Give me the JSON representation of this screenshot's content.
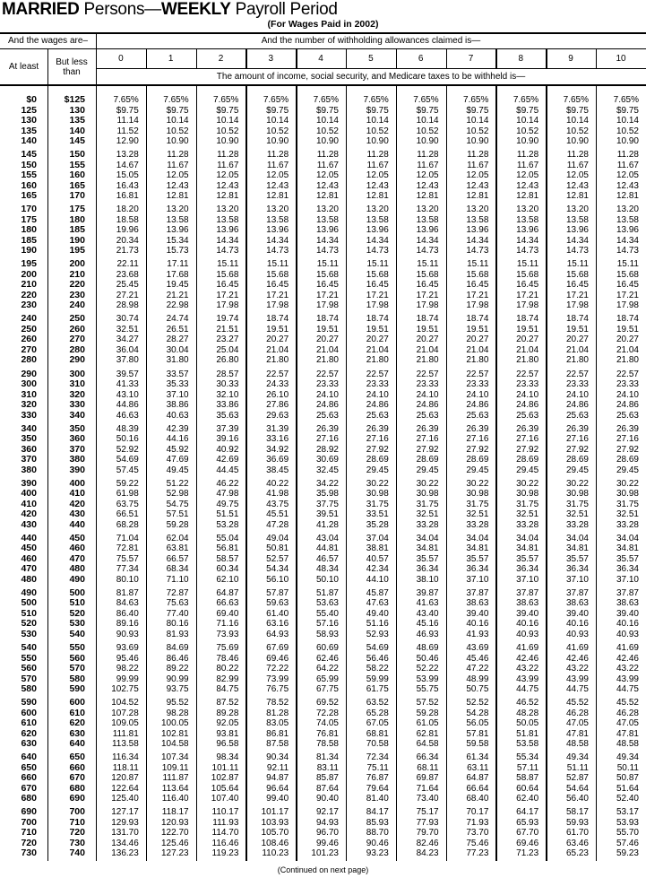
{
  "title": {
    "part1": "MARRIED",
    "part2": " Persons—",
    "part3": "WEEKLY",
    "part4": " Payroll Period"
  },
  "subtitle": "(For Wages Paid in 2002)",
  "header": {
    "wages_label": "And the wages are–",
    "allowances_label": "And the number of withholding allowances claimed is—",
    "at_least": "At least",
    "but_less_than": "But less than",
    "allowance_columns": [
      "0",
      "1",
      "2",
      "3",
      "4",
      "5",
      "6",
      "7",
      "8",
      "9",
      "10"
    ],
    "amount_label": "The amount of income, social security, and Medicare taxes to be withheld is—"
  },
  "groups": [
    [
      [
        "$0",
        "$125",
        "7.65%",
        "7.65%",
        "7.65%",
        "7.65%",
        "7.65%",
        "7.65%",
        "7.65%",
        "7.65%",
        "7.65%",
        "7.65%",
        "7.65%"
      ],
      [
        "125",
        "130",
        "$9.75",
        "$9.75",
        "$9.75",
        "$9.75",
        "$9.75",
        "$9.75",
        "$9.75",
        "$9.75",
        "$9.75",
        "$9.75",
        "$9.75"
      ],
      [
        "130",
        "135",
        "11.14",
        "10.14",
        "10.14",
        "10.14",
        "10.14",
        "10.14",
        "10.14",
        "10.14",
        "10.14",
        "10.14",
        "10.14"
      ],
      [
        "135",
        "140",
        "11.52",
        "10.52",
        "10.52",
        "10.52",
        "10.52",
        "10.52",
        "10.52",
        "10.52",
        "10.52",
        "10.52",
        "10.52"
      ],
      [
        "140",
        "145",
        "12.90",
        "10.90",
        "10.90",
        "10.90",
        "10.90",
        "10.90",
        "10.90",
        "10.90",
        "10.90",
        "10.90",
        "10.90"
      ]
    ],
    [
      [
        "145",
        "150",
        "13.28",
        "11.28",
        "11.28",
        "11.28",
        "11.28",
        "11.28",
        "11.28",
        "11.28",
        "11.28",
        "11.28",
        "11.28"
      ],
      [
        "150",
        "155",
        "14.67",
        "11.67",
        "11.67",
        "11.67",
        "11.67",
        "11.67",
        "11.67",
        "11.67",
        "11.67",
        "11.67",
        "11.67"
      ],
      [
        "155",
        "160",
        "15.05",
        "12.05",
        "12.05",
        "12.05",
        "12.05",
        "12.05",
        "12.05",
        "12.05",
        "12.05",
        "12.05",
        "12.05"
      ],
      [
        "160",
        "165",
        "16.43",
        "12.43",
        "12.43",
        "12.43",
        "12.43",
        "12.43",
        "12.43",
        "12.43",
        "12.43",
        "12.43",
        "12.43"
      ],
      [
        "165",
        "170",
        "16.81",
        "12.81",
        "12.81",
        "12.81",
        "12.81",
        "12.81",
        "12.81",
        "12.81",
        "12.81",
        "12.81",
        "12.81"
      ]
    ],
    [
      [
        "170",
        "175",
        "18.20",
        "13.20",
        "13.20",
        "13.20",
        "13.20",
        "13.20",
        "13.20",
        "13.20",
        "13.20",
        "13.20",
        "13.20"
      ],
      [
        "175",
        "180",
        "18.58",
        "13.58",
        "13.58",
        "13.58",
        "13.58",
        "13.58",
        "13.58",
        "13.58",
        "13.58",
        "13.58",
        "13.58"
      ],
      [
        "180",
        "185",
        "19.96",
        "13.96",
        "13.96",
        "13.96",
        "13.96",
        "13.96",
        "13.96",
        "13.96",
        "13.96",
        "13.96",
        "13.96"
      ],
      [
        "185",
        "190",
        "20.34",
        "15.34",
        "14.34",
        "14.34",
        "14.34",
        "14.34",
        "14.34",
        "14.34",
        "14.34",
        "14.34",
        "14.34"
      ],
      [
        "190",
        "195",
        "21.73",
        "15.73",
        "14.73",
        "14.73",
        "14.73",
        "14.73",
        "14.73",
        "14.73",
        "14.73",
        "14.73",
        "14.73"
      ]
    ],
    [
      [
        "195",
        "200",
        "22.11",
        "17.11",
        "15.11",
        "15.11",
        "15.11",
        "15.11",
        "15.11",
        "15.11",
        "15.11",
        "15.11",
        "15.11"
      ],
      [
        "200",
        "210",
        "23.68",
        "17.68",
        "15.68",
        "15.68",
        "15.68",
        "15.68",
        "15.68",
        "15.68",
        "15.68",
        "15.68",
        "15.68"
      ],
      [
        "210",
        "220",
        "25.45",
        "19.45",
        "16.45",
        "16.45",
        "16.45",
        "16.45",
        "16.45",
        "16.45",
        "16.45",
        "16.45",
        "16.45"
      ],
      [
        "220",
        "230",
        "27.21",
        "21.21",
        "17.21",
        "17.21",
        "17.21",
        "17.21",
        "17.21",
        "17.21",
        "17.21",
        "17.21",
        "17.21"
      ],
      [
        "230",
        "240",
        "28.98",
        "22.98",
        "17.98",
        "17.98",
        "17.98",
        "17.98",
        "17.98",
        "17.98",
        "17.98",
        "17.98",
        "17.98"
      ]
    ],
    [
      [
        "240",
        "250",
        "30.74",
        "24.74",
        "19.74",
        "18.74",
        "18.74",
        "18.74",
        "18.74",
        "18.74",
        "18.74",
        "18.74",
        "18.74"
      ],
      [
        "250",
        "260",
        "32.51",
        "26.51",
        "21.51",
        "19.51",
        "19.51",
        "19.51",
        "19.51",
        "19.51",
        "19.51",
        "19.51",
        "19.51"
      ],
      [
        "260",
        "270",
        "34.27",
        "28.27",
        "23.27",
        "20.27",
        "20.27",
        "20.27",
        "20.27",
        "20.27",
        "20.27",
        "20.27",
        "20.27"
      ],
      [
        "270",
        "280",
        "36.04",
        "30.04",
        "25.04",
        "21.04",
        "21.04",
        "21.04",
        "21.04",
        "21.04",
        "21.04",
        "21.04",
        "21.04"
      ],
      [
        "280",
        "290",
        "37.80",
        "31.80",
        "26.80",
        "21.80",
        "21.80",
        "21.80",
        "21.80",
        "21.80",
        "21.80",
        "21.80",
        "21.80"
      ]
    ],
    [
      [
        "290",
        "300",
        "39.57",
        "33.57",
        "28.57",
        "22.57",
        "22.57",
        "22.57",
        "22.57",
        "22.57",
        "22.57",
        "22.57",
        "22.57"
      ],
      [
        "300",
        "310",
        "41.33",
        "35.33",
        "30.33",
        "24.33",
        "23.33",
        "23.33",
        "23.33",
        "23.33",
        "23.33",
        "23.33",
        "23.33"
      ],
      [
        "310",
        "320",
        "43.10",
        "37.10",
        "32.10",
        "26.10",
        "24.10",
        "24.10",
        "24.10",
        "24.10",
        "24.10",
        "24.10",
        "24.10"
      ],
      [
        "320",
        "330",
        "44.86",
        "38.86",
        "33.86",
        "27.86",
        "24.86",
        "24.86",
        "24.86",
        "24.86",
        "24.86",
        "24.86",
        "24.86"
      ],
      [
        "330",
        "340",
        "46.63",
        "40.63",
        "35.63",
        "29.63",
        "25.63",
        "25.63",
        "25.63",
        "25.63",
        "25.63",
        "25.63",
        "25.63"
      ]
    ],
    [
      [
        "340",
        "350",
        "48.39",
        "42.39",
        "37.39",
        "31.39",
        "26.39",
        "26.39",
        "26.39",
        "26.39",
        "26.39",
        "26.39",
        "26.39"
      ],
      [
        "350",
        "360",
        "50.16",
        "44.16",
        "39.16",
        "33.16",
        "27.16",
        "27.16",
        "27.16",
        "27.16",
        "27.16",
        "27.16",
        "27.16"
      ],
      [
        "360",
        "370",
        "52.92",
        "45.92",
        "40.92",
        "34.92",
        "28.92",
        "27.92",
        "27.92",
        "27.92",
        "27.92",
        "27.92",
        "27.92"
      ],
      [
        "370",
        "380",
        "54.69",
        "47.69",
        "42.69",
        "36.69",
        "30.69",
        "28.69",
        "28.69",
        "28.69",
        "28.69",
        "28.69",
        "28.69"
      ],
      [
        "380",
        "390",
        "57.45",
        "49.45",
        "44.45",
        "38.45",
        "32.45",
        "29.45",
        "29.45",
        "29.45",
        "29.45",
        "29.45",
        "29.45"
      ]
    ],
    [
      [
        "390",
        "400",
        "59.22",
        "51.22",
        "46.22",
        "40.22",
        "34.22",
        "30.22",
        "30.22",
        "30.22",
        "30.22",
        "30.22",
        "30.22"
      ],
      [
        "400",
        "410",
        "61.98",
        "52.98",
        "47.98",
        "41.98",
        "35.98",
        "30.98",
        "30.98",
        "30.98",
        "30.98",
        "30.98",
        "30.98"
      ],
      [
        "410",
        "420",
        "63.75",
        "54.75",
        "49.75",
        "43.75",
        "37.75",
        "31.75",
        "31.75",
        "31.75",
        "31.75",
        "31.75",
        "31.75"
      ],
      [
        "420",
        "430",
        "66.51",
        "57.51",
        "51.51",
        "45.51",
        "39.51",
        "33.51",
        "32.51",
        "32.51",
        "32.51",
        "32.51",
        "32.51"
      ],
      [
        "430",
        "440",
        "68.28",
        "59.28",
        "53.28",
        "47.28",
        "41.28",
        "35.28",
        "33.28",
        "33.28",
        "33.28",
        "33.28",
        "33.28"
      ]
    ],
    [
      [
        "440",
        "450",
        "71.04",
        "62.04",
        "55.04",
        "49.04",
        "43.04",
        "37.04",
        "34.04",
        "34.04",
        "34.04",
        "34.04",
        "34.04"
      ],
      [
        "450",
        "460",
        "72.81",
        "63.81",
        "56.81",
        "50.81",
        "44.81",
        "38.81",
        "34.81",
        "34.81",
        "34.81",
        "34.81",
        "34.81"
      ],
      [
        "460",
        "470",
        "75.57",
        "66.57",
        "58.57",
        "52.57",
        "46.57",
        "40.57",
        "35.57",
        "35.57",
        "35.57",
        "35.57",
        "35.57"
      ],
      [
        "470",
        "480",
        "77.34",
        "68.34",
        "60.34",
        "54.34",
        "48.34",
        "42.34",
        "36.34",
        "36.34",
        "36.34",
        "36.34",
        "36.34"
      ],
      [
        "480",
        "490",
        "80.10",
        "71.10",
        "62.10",
        "56.10",
        "50.10",
        "44.10",
        "38.10",
        "37.10",
        "37.10",
        "37.10",
        "37.10"
      ]
    ],
    [
      [
        "490",
        "500",
        "81.87",
        "72.87",
        "64.87",
        "57.87",
        "51.87",
        "45.87",
        "39.87",
        "37.87",
        "37.87",
        "37.87",
        "37.87"
      ],
      [
        "500",
        "510",
        "84.63",
        "75.63",
        "66.63",
        "59.63",
        "53.63",
        "47.63",
        "41.63",
        "38.63",
        "38.63",
        "38.63",
        "38.63"
      ],
      [
        "510",
        "520",
        "86.40",
        "77.40",
        "69.40",
        "61.40",
        "55.40",
        "49.40",
        "43.40",
        "39.40",
        "39.40",
        "39.40",
        "39.40"
      ],
      [
        "520",
        "530",
        "89.16",
        "80.16",
        "71.16",
        "63.16",
        "57.16",
        "51.16",
        "45.16",
        "40.16",
        "40.16",
        "40.16",
        "40.16"
      ],
      [
        "530",
        "540",
        "90.93",
        "81.93",
        "73.93",
        "64.93",
        "58.93",
        "52.93",
        "46.93",
        "41.93",
        "40.93",
        "40.93",
        "40.93"
      ]
    ],
    [
      [
        "540",
        "550",
        "93.69",
        "84.69",
        "75.69",
        "67.69",
        "60.69",
        "54.69",
        "48.69",
        "43.69",
        "41.69",
        "41.69",
        "41.69"
      ],
      [
        "550",
        "560",
        "95.46",
        "86.46",
        "78.46",
        "69.46",
        "62.46",
        "56.46",
        "50.46",
        "45.46",
        "42.46",
        "42.46",
        "42.46"
      ],
      [
        "560",
        "570",
        "98.22",
        "89.22",
        "80.22",
        "72.22",
        "64.22",
        "58.22",
        "52.22",
        "47.22",
        "43.22",
        "43.22",
        "43.22"
      ],
      [
        "570",
        "580",
        "99.99",
        "90.99",
        "82.99",
        "73.99",
        "65.99",
        "59.99",
        "53.99",
        "48.99",
        "43.99",
        "43.99",
        "43.99"
      ],
      [
        "580",
        "590",
        "102.75",
        "93.75",
        "84.75",
        "76.75",
        "67.75",
        "61.75",
        "55.75",
        "50.75",
        "44.75",
        "44.75",
        "44.75"
      ]
    ],
    [
      [
        "590",
        "600",
        "104.52",
        "95.52",
        "87.52",
        "78.52",
        "69.52",
        "63.52",
        "57.52",
        "52.52",
        "46.52",
        "45.52",
        "45.52"
      ],
      [
        "600",
        "610",
        "107.28",
        "98.28",
        "89.28",
        "81.28",
        "72.28",
        "65.28",
        "59.28",
        "54.28",
        "48.28",
        "46.28",
        "46.28"
      ],
      [
        "610",
        "620",
        "109.05",
        "100.05",
        "92.05",
        "83.05",
        "74.05",
        "67.05",
        "61.05",
        "56.05",
        "50.05",
        "47.05",
        "47.05"
      ],
      [
        "620",
        "630",
        "111.81",
        "102.81",
        "93.81",
        "86.81",
        "76.81",
        "68.81",
        "62.81",
        "57.81",
        "51.81",
        "47.81",
        "47.81"
      ],
      [
        "630",
        "640",
        "113.58",
        "104.58",
        "96.58",
        "87.58",
        "78.58",
        "70.58",
        "64.58",
        "59.58",
        "53.58",
        "48.58",
        "48.58"
      ]
    ],
    [
      [
        "640",
        "650",
        "116.34",
        "107.34",
        "98.34",
        "90.34",
        "81.34",
        "72.34",
        "66.34",
        "61.34",
        "55.34",
        "49.34",
        "49.34"
      ],
      [
        "650",
        "660",
        "118.11",
        "109.11",
        "101.11",
        "92.11",
        "83.11",
        "75.11",
        "68.11",
        "63.11",
        "57.11",
        "51.11",
        "50.11"
      ],
      [
        "660",
        "670",
        "120.87",
        "111.87",
        "102.87",
        "94.87",
        "85.87",
        "76.87",
        "69.87",
        "64.87",
        "58.87",
        "52.87",
        "50.87"
      ],
      [
        "670",
        "680",
        "122.64",
        "113.64",
        "105.64",
        "96.64",
        "87.64",
        "79.64",
        "71.64",
        "66.64",
        "60.64",
        "54.64",
        "51.64"
      ],
      [
        "680",
        "690",
        "125.40",
        "116.40",
        "107.40",
        "99.40",
        "90.40",
        "81.40",
        "73.40",
        "68.40",
        "62.40",
        "56.40",
        "52.40"
      ]
    ],
    [
      [
        "690",
        "700",
        "127.17",
        "118.17",
        "110.17",
        "101.17",
        "92.17",
        "84.17",
        "75.17",
        "70.17",
        "64.17",
        "58.17",
        "53.17"
      ],
      [
        "700",
        "710",
        "129.93",
        "120.93",
        "111.93",
        "103.93",
        "94.93",
        "85.93",
        "77.93",
        "71.93",
        "65.93",
        "59.93",
        "53.93"
      ],
      [
        "710",
        "720",
        "131.70",
        "122.70",
        "114.70",
        "105.70",
        "96.70",
        "88.70",
        "79.70",
        "73.70",
        "67.70",
        "61.70",
        "55.70"
      ],
      [
        "720",
        "730",
        "134.46",
        "125.46",
        "116.46",
        "108.46",
        "99.46",
        "90.46",
        "82.46",
        "75.46",
        "69.46",
        "63.46",
        "57.46"
      ],
      [
        "730",
        "740",
        "136.23",
        "127.23",
        "119.23",
        "110.23",
        "101.23",
        "93.23",
        "84.23",
        "77.23",
        "71.23",
        "65.23",
        "59.23"
      ]
    ]
  ],
  "footer": "(Continued on next page)"
}
